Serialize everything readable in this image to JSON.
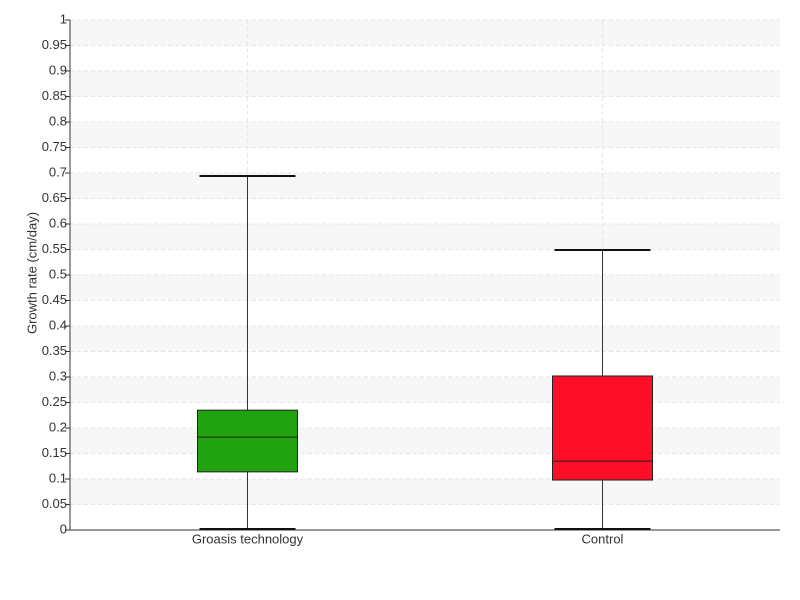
{
  "chart_data": {
    "type": "box",
    "y_label": "Growth rate (cm/day)",
    "categories": [
      "Groasis technology",
      "Control"
    ],
    "boxes": [
      {
        "min": 0,
        "q1": 0.114,
        "median": 0.182,
        "q3": 0.235,
        "max": 0.694,
        "color": "#21a30f"
      },
      {
        "min": 0,
        "q1": 0.098,
        "median": 0.135,
        "q3": 0.302,
        "max": 0.549,
        "color": "#ff0e28"
      }
    ],
    "ylim": [
      0,
      1
    ],
    "yticks": [
      0,
      0.05,
      0.1,
      0.15,
      0.2,
      0.25,
      0.3,
      0.35,
      0.4,
      0.45,
      0.5,
      0.55,
      0.6,
      0.65,
      0.7,
      0.75,
      0.8,
      0.85,
      0.9,
      0.95,
      1
    ],
    "grid": true
  }
}
